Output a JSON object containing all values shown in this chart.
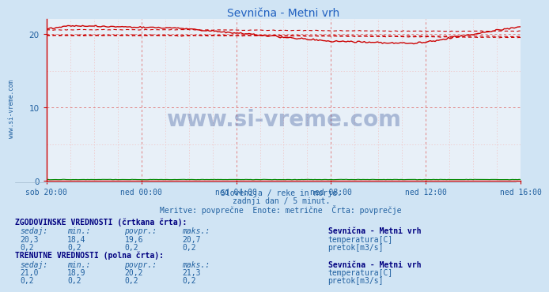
{
  "title": "Sevnična - Metni vrh",
  "bg_color": "#d0e4f4",
  "plot_bg_color": "#e8f0f8",
  "grid_color_v": "#e08080",
  "grid_color_h": "#e08080",
  "grid_minor_v": "#f0c0c0",
  "grid_minor_h": "#f0c0c0",
  "title_color": "#2060c0",
  "axis_color": "#cc0000",
  "tick_color": "#2060a0",
  "watermark_text": "www.si-vreme.com",
  "watermark_color": "#1a3a8a",
  "subtitle_line1": "Slovenija / reke in morje.",
  "subtitle_line2": "zadnji dan / 5 minut.",
  "subtitle_line3": "Meritve: povprečne  Enote: metrične  Črta: povprečje",
  "subtitle_color": "#2060a0",
  "x_tick_labels": [
    "sob 20:00",
    "ned 00:00",
    "ned 04:00",
    "ned 08:00",
    "ned 12:00",
    "ned 16:00"
  ],
  "x_tick_positions": [
    0,
    48,
    96,
    144,
    192,
    240
  ],
  "ylim": [
    0,
    22
  ],
  "yticks": [
    0,
    10,
    20
  ],
  "n_points": 289,
  "temp_solid_color": "#cc0000",
  "temp_dashed_color": "#cc0000",
  "flow_color": "#008800",
  "flow_value": 0.2,
  "table_text_color": "#2060a0",
  "table_bold_color": "#000080",
  "label_hist_bold": "ZGODOVINSKE VREDNOSTI (črtkana črta):",
  "label_curr_bold": "TRENUTNE VREDNOSTI (polna črta):",
  "col_headers": [
    "sedaj:",
    "min.:",
    "povpr.:",
    "maks.:"
  ],
  "hist_temp_row": [
    "20,3",
    "18,4",
    "19,6",
    "20,7"
  ],
  "hist_flow_row": [
    "0,2",
    "0,2",
    "0,2",
    "0,2"
  ],
  "curr_temp_row": [
    "21,0",
    "18,9",
    "20,2",
    "21,3"
  ],
  "curr_flow_row": [
    "0,2",
    "0,2",
    "0,2",
    "0,2"
  ],
  "station_label": "Sevnična - Metni vrh",
  "temp_label": "temperatura[C]",
  "flow_label": "pretok[m3/s]",
  "temp_icon_color_hist": "#cc0000",
  "flow_icon_color_hist": "#228822",
  "temp_icon_color_curr": "#cc0000",
  "flow_icon_color_curr": "#44bb44",
  "sidebar_text": "www.si-vreme.com",
  "sidebar_color": "#2060a0"
}
